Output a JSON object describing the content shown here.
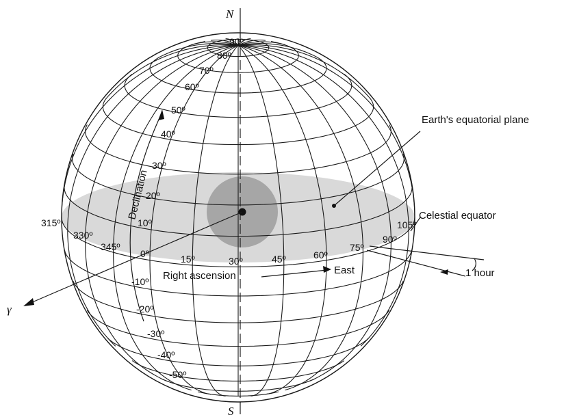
{
  "labels": {
    "north": "N",
    "south": "S",
    "gamma": "γ",
    "declination": "Declination",
    "right_ascension": "Right ascension",
    "east": "East",
    "celestial_equator": "Celestial equator",
    "equatorial_plane": "Earth's equatorial plane",
    "one_hour": "1 hour"
  },
  "declination_ticks": [
    "90º",
    "80º",
    "70º",
    "60º",
    "50º",
    "40º",
    "30º",
    "20º",
    "10º",
    "0º",
    "-10º",
    "-20º",
    "-30º",
    "-40º",
    "-50º"
  ],
  "ra_ticks_left": [
    "315º",
    "330º",
    "345º"
  ],
  "ra_ticks_front": [
    "15º",
    "30º",
    "45º",
    "60º",
    "75º",
    "90º",
    "105º"
  ],
  "colors": {
    "line": "#1a1a1a",
    "equatorial_plane": "#d9d9d9",
    "earth": "#a6a6a6",
    "background": "#ffffff"
  }
}
